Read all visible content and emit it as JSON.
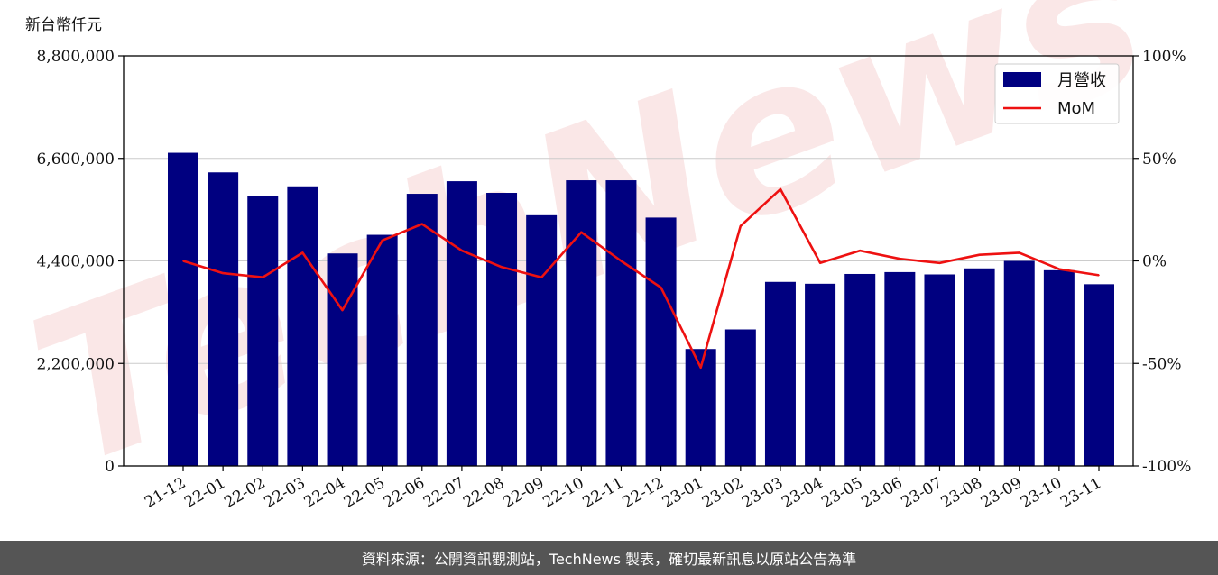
{
  "chart_data": {
    "type": "bar",
    "y_unit_label": "新台幣仟元",
    "categories": [
      "21-12",
      "22-01",
      "22-02",
      "22-03",
      "22-04",
      "22-05",
      "22-06",
      "22-07",
      "22-08",
      "22-09",
      "22-10",
      "22-11",
      "22-12",
      "23-01",
      "23-02",
      "23-03",
      "23-04",
      "23-05",
      "23-06",
      "23-07",
      "23-08",
      "23-09",
      "23-10",
      "23-11"
    ],
    "ylim": [
      0,
      8800000
    ],
    "y2lim": [
      -100,
      100
    ],
    "y_ticks": [
      "0",
      "2,200,000",
      "4,400,000",
      "6,600,000",
      "8,800,000"
    ],
    "y2_ticks": [
      "-100%",
      "-50%",
      "0%",
      "50%",
      "100%"
    ],
    "grid": true,
    "legend_position": "top-right",
    "series": [
      {
        "name": "月營收",
        "kind": "bar",
        "color": "#000080",
        "values": [
          6720000,
          6300000,
          5800000,
          6000000,
          4560000,
          4960000,
          5840000,
          6110000,
          5860000,
          5380000,
          6130000,
          6130000,
          5330000,
          2510000,
          2930000,
          3950000,
          3910000,
          4120000,
          4160000,
          4110000,
          4240000,
          4400000,
          4200000,
          3900000
        ]
      },
      {
        "name": "MoM",
        "kind": "line",
        "color": "#ee1111",
        "axis": "y2",
        "values": [
          0,
          -6,
          -8,
          4,
          -24,
          10,
          18,
          5,
          -3,
          -8,
          14,
          0,
          -13,
          -52,
          17,
          35,
          -1,
          5,
          1,
          -1,
          3,
          4,
          -4,
          -7
        ]
      }
    ]
  },
  "footer": {
    "text": "資料來源：公開資訊觀測站，TechNews 製表，確切最新訊息以原站公告為準"
  },
  "watermark": {
    "text": "TechNews",
    "color": "#f4c9c9"
  }
}
